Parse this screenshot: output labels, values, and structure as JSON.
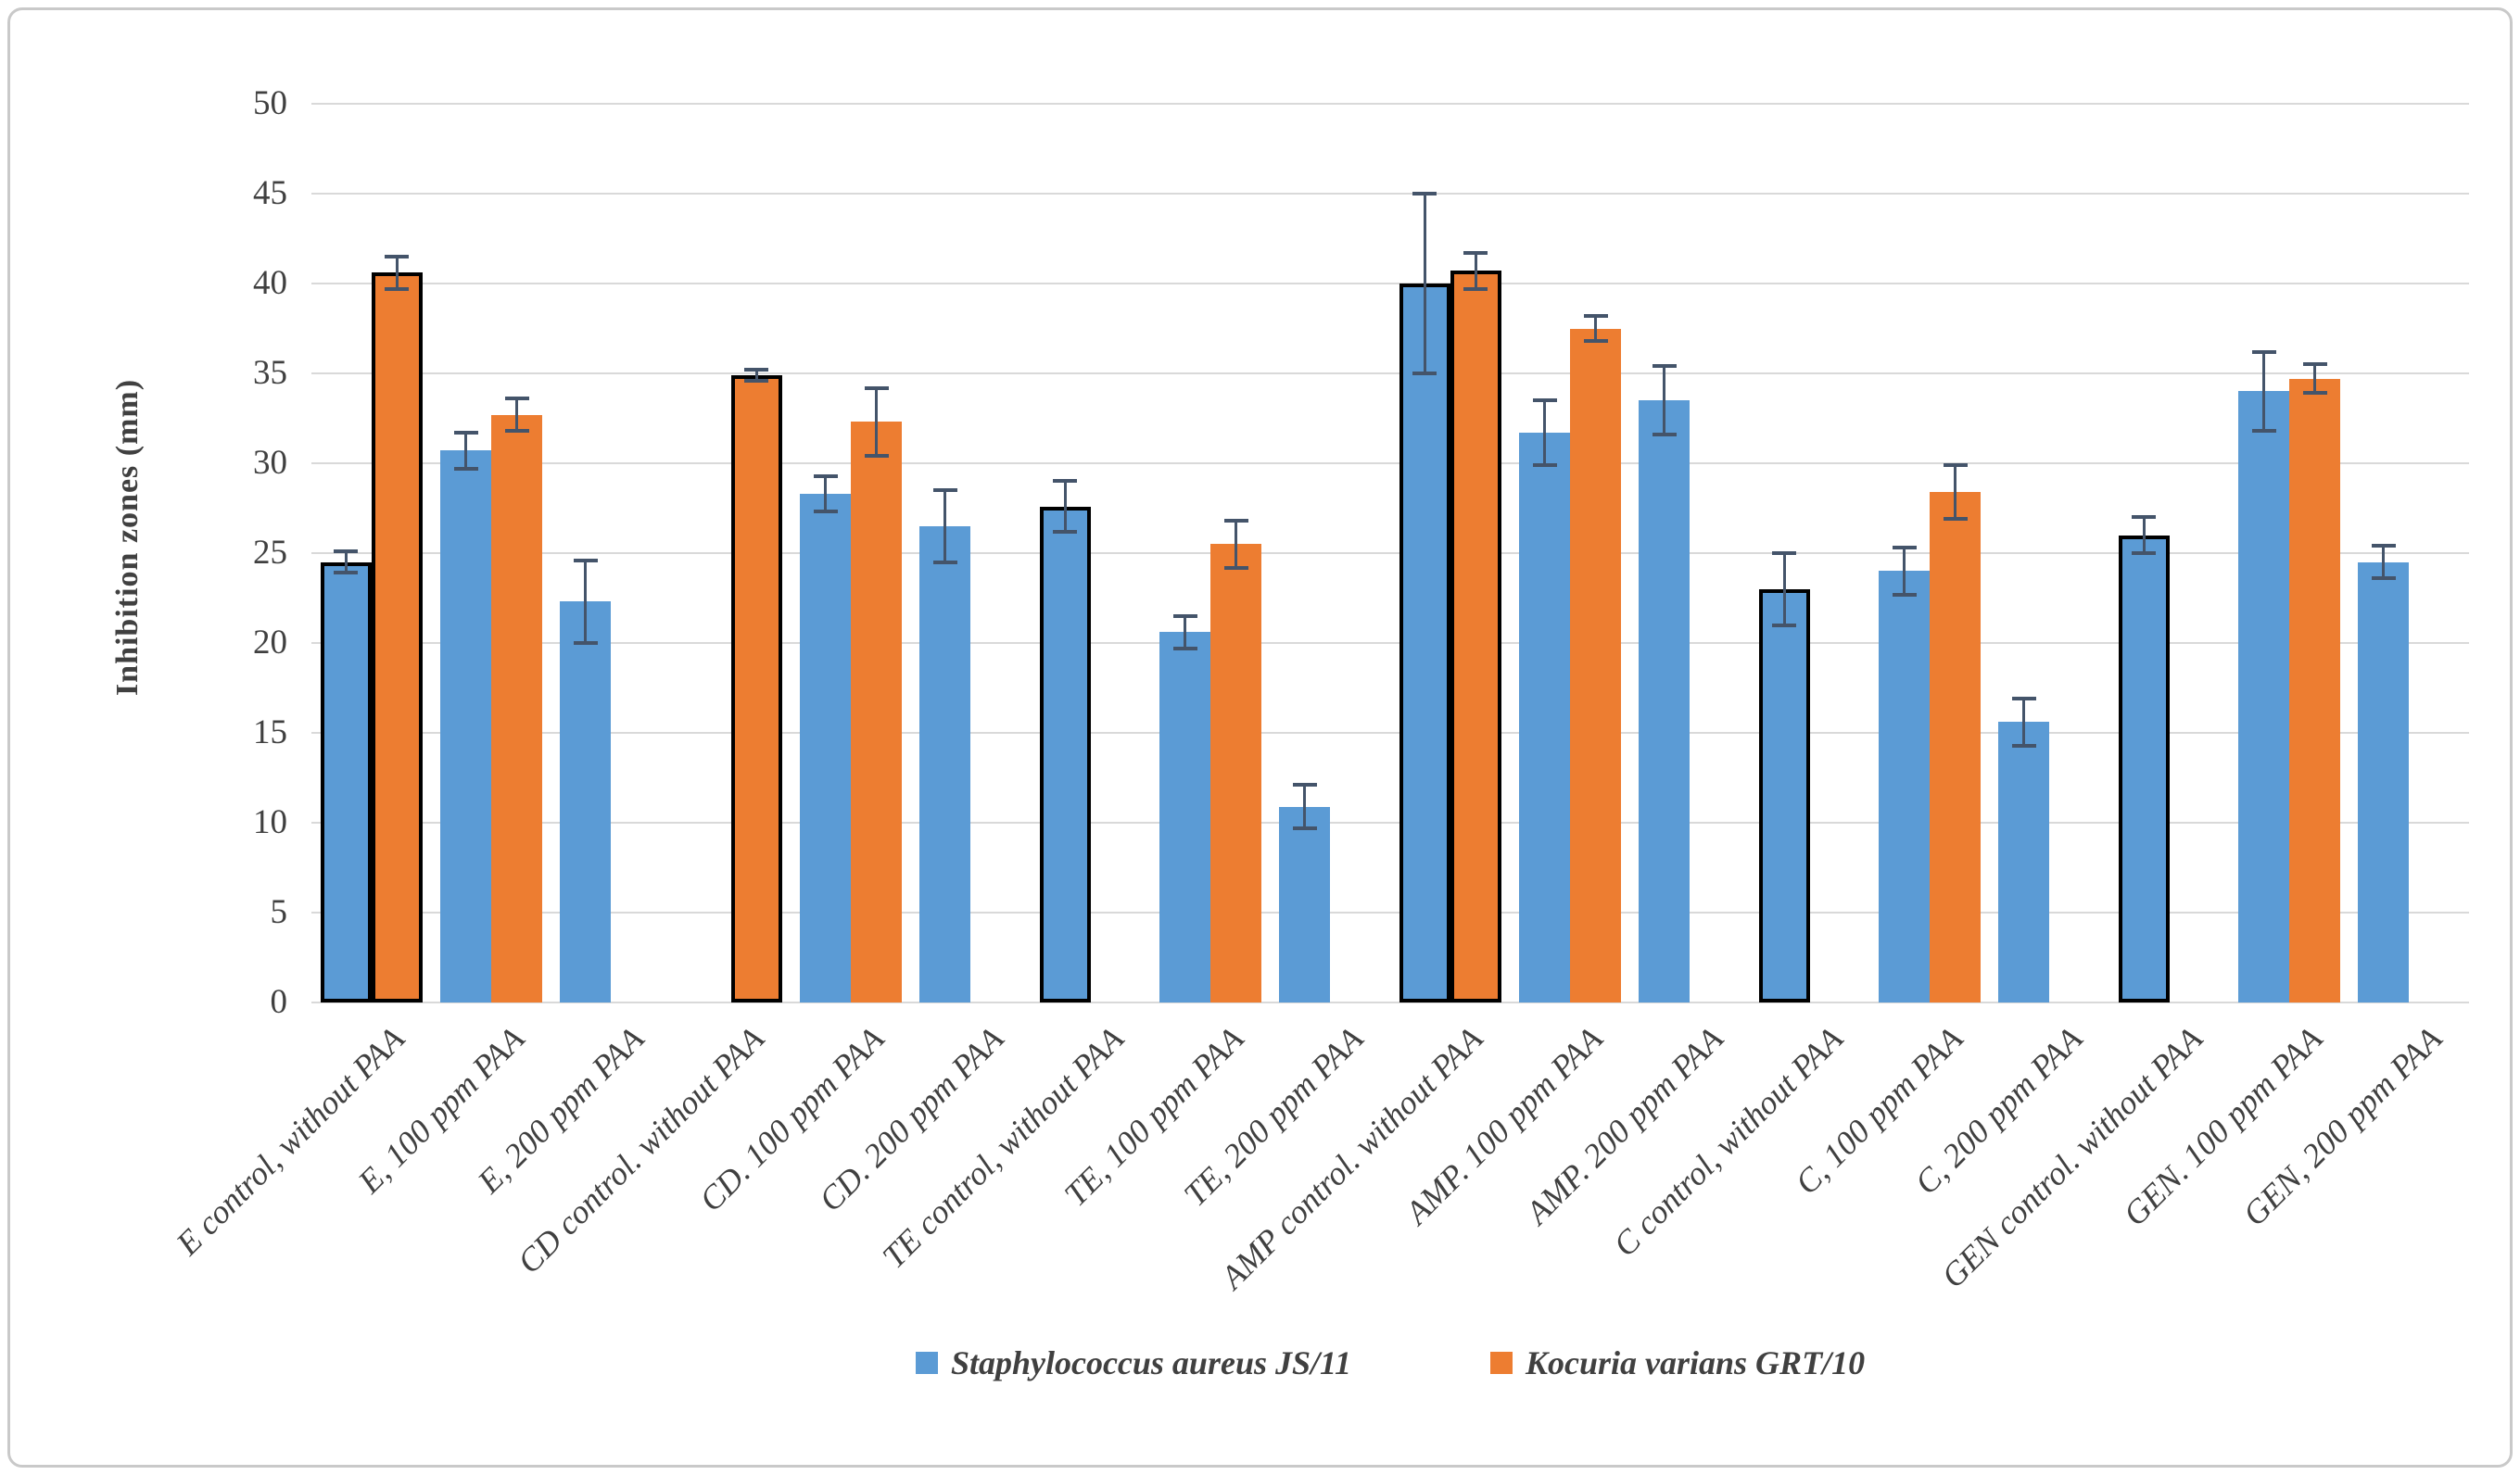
{
  "figure": {
    "background": "#ffffff",
    "border_color": "#c9c9c9"
  },
  "y_axis": {
    "title": "Inhibition zones (mm)",
    "ticks": [
      0,
      5,
      10,
      15,
      20,
      25,
      30,
      35,
      40,
      45,
      50
    ],
    "min": 0,
    "max": 50
  },
  "legend": {
    "items": [
      {
        "label": "Staphylococcus aureus JS/11",
        "color": "#5B9BD5"
      },
      {
        "label": "Kocuria varians GRT/10",
        "color": "#ED7D31"
      }
    ]
  },
  "chart_data": {
    "type": "bar",
    "title": "",
    "xlabel": "",
    "ylabel": "Inhibition zones (mm)",
    "ylim": [
      0,
      50
    ],
    "grid": true,
    "gridline_color": "#d9d9d9",
    "error_bar_color": "#44546A",
    "outline_color": "#000000",
    "legend_position": "bottom",
    "categories": [
      "E control, without PAA",
      "E, 100 ppm PAA",
      "E, 200 ppm PAA",
      "CD control. without PAA",
      "CD. 100 ppm PAA",
      "CD. 200 ppm PAA",
      "TE control, without PAA",
      "TE, 100 ppm PAA",
      "TE, 200 ppm PAA",
      "AMP control. without PAA",
      "AMP. 100 ppm PAA",
      "AMP. 200 ppm PAA",
      "C control, without PAA",
      "C, 100 ppm PAA",
      "C, 200 ppm PAA",
      "GEN control. without PAA",
      "GEN. 100 ppm PAA",
      "GEN, 200 ppm PAA"
    ],
    "series": [
      {
        "name": "Staphylococcus aureus JS/11",
        "color": "#5B9BD5",
        "values": [
          24.5,
          30.7,
          22.3,
          null,
          28.3,
          26.5,
          27.6,
          20.6,
          10.9,
          40.0,
          31.7,
          33.5,
          23.0,
          24.0,
          15.6,
          26.0,
          34.0,
          24.5
        ],
        "errors": [
          0.6,
          1.0,
          2.3,
          null,
          1.0,
          2.0,
          1.4,
          0.9,
          1.2,
          5.0,
          1.8,
          1.9,
          2.0,
          1.3,
          1.3,
          1.0,
          2.2,
          0.9
        ],
        "outlined": [
          true,
          false,
          false,
          false,
          false,
          false,
          true,
          false,
          false,
          true,
          false,
          false,
          true,
          false,
          false,
          true,
          false,
          false
        ]
      },
      {
        "name": "Kocuria varians GRT/10",
        "color": "#ED7D31",
        "values": [
          40.6,
          32.7,
          null,
          34.9,
          32.3,
          null,
          null,
          25.5,
          null,
          40.7,
          37.5,
          null,
          null,
          28.4,
          null,
          null,
          34.7,
          null
        ],
        "errors": [
          0.9,
          0.9,
          null,
          0.3,
          1.9,
          null,
          null,
          1.3,
          null,
          1.0,
          0.7,
          null,
          null,
          1.5,
          null,
          null,
          0.8,
          null
        ],
        "outlined": [
          true,
          false,
          false,
          true,
          false,
          false,
          false,
          false,
          false,
          true,
          false,
          false,
          false,
          false,
          false,
          false,
          false,
          false
        ]
      }
    ]
  }
}
